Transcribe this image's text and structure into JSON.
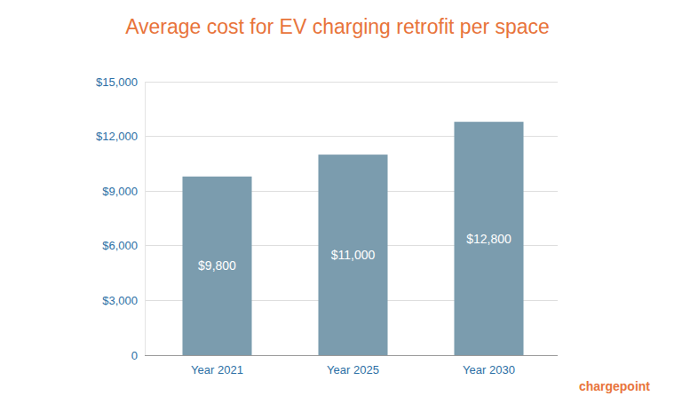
{
  "chart_data": {
    "type": "bar",
    "title": "Average cost for EV charging retrofit per space",
    "categories": [
      "Year 2021",
      "Year 2025",
      "Year 2030"
    ],
    "values": [
      9800,
      11000,
      12800
    ],
    "value_labels": [
      "$9,800",
      "$11,000",
      "$12,800"
    ],
    "data_labels": true,
    "color": "#7b9cae",
    "ylim": [
      0,
      15000
    ],
    "yticks": [
      0,
      {
        "value": 3000,
        "label": "$3,000"
      },
      {
        "value": 6000,
        "label": "$6,000"
      },
      {
        "value": 9000,
        "label": "$9,000"
      },
      {
        "value": 12000,
        "label": "$12,000"
      },
      {
        "value": 15000,
        "label": "$15,000"
      }
    ],
    "grid": true,
    "annotations": [
      {
        "text": "chargepoint"
      }
    ]
  }
}
